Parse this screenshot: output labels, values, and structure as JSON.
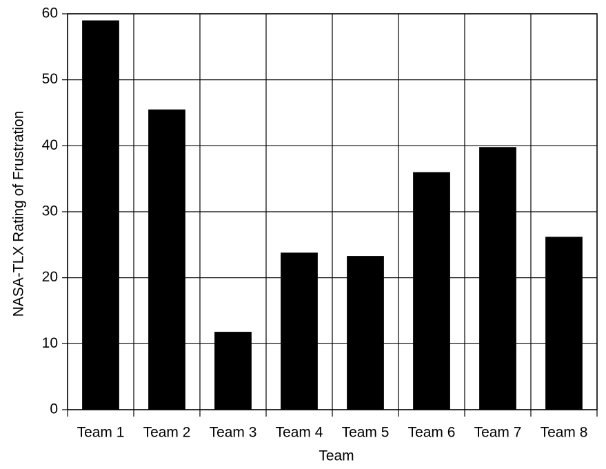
{
  "chart_data": {
    "type": "bar",
    "x_label": "Team",
    "y_label": "NASA-TLX Rating of Frustration",
    "categories": [
      "Team 1",
      "Team 2",
      "Team 3",
      "Team 4",
      "Team 5",
      "Team 6",
      "Team 7",
      "Team 8"
    ],
    "values": [
      59,
      45.5,
      11.8,
      23.8,
      23.3,
      36,
      39.8,
      26.2
    ],
    "color": "#000000",
    "ylim": [
      0,
      60
    ],
    "yticks": [
      0,
      10,
      20,
      30,
      40,
      50,
      60
    ],
    "grid": true
  }
}
